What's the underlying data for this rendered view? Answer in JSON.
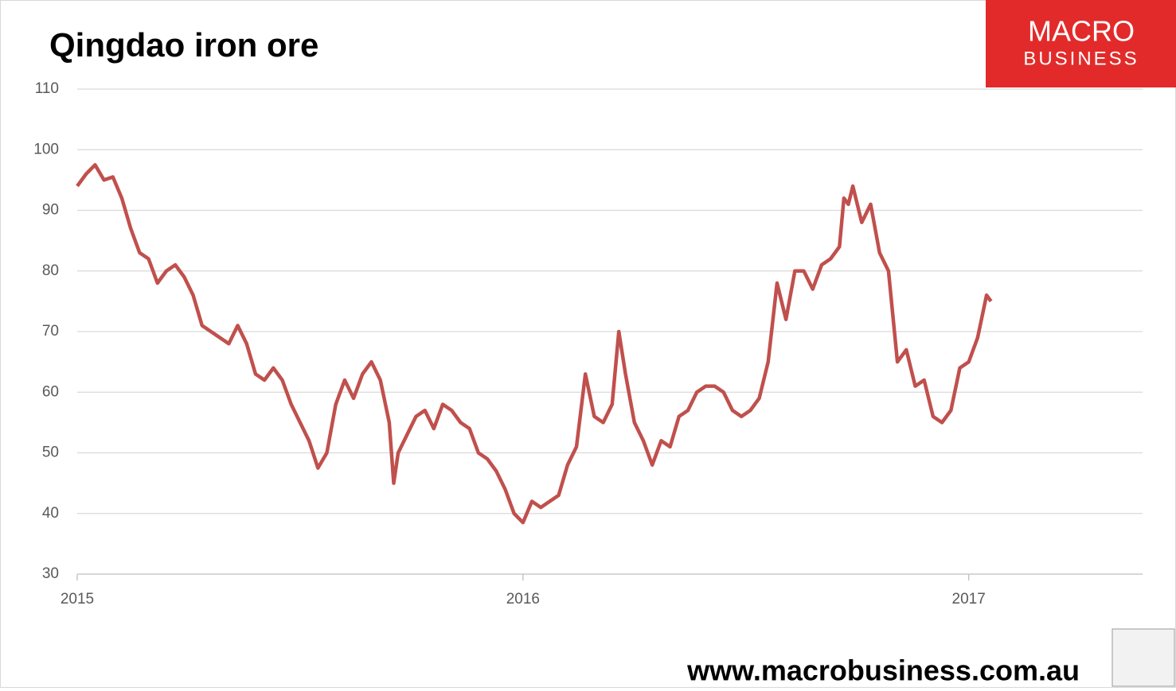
{
  "chart_data": {
    "type": "line",
    "title": "Qingdao iron ore",
    "logo": [
      "MACRO",
      "BUSINESS"
    ],
    "source": "www.macrobusiness.com.au",
    "x": [
      2015.0,
      2015.02,
      2015.04,
      2015.06,
      2015.08,
      2015.1,
      2015.12,
      2015.14,
      2015.16,
      2015.18,
      2015.2,
      2015.22,
      2015.24,
      2015.26,
      2015.28,
      2015.3,
      2015.32,
      2015.34,
      2015.36,
      2015.38,
      2015.4,
      2015.42,
      2015.44,
      2015.46,
      2015.48,
      2015.5,
      2015.52,
      2015.54,
      2015.56,
      2015.58,
      2015.6,
      2015.62,
      2015.64,
      2015.66,
      2015.68,
      2015.7,
      2015.71,
      2015.72,
      2015.74,
      2015.76,
      2015.78,
      2015.8,
      2015.82,
      2015.84,
      2015.86,
      2015.88,
      2015.9,
      2015.92,
      2015.94,
      2015.96,
      2015.98,
      2016.0,
      2016.02,
      2016.04,
      2016.06,
      2016.08,
      2016.1,
      2016.12,
      2016.14,
      2016.16,
      2016.18,
      2016.2,
      2016.215,
      2016.23,
      2016.25,
      2016.27,
      2016.29,
      2016.31,
      2016.33,
      2016.35,
      2016.37,
      2016.39,
      2016.41,
      2016.43,
      2016.45,
      2016.47,
      2016.49,
      2016.51,
      2016.53,
      2016.55,
      2016.57,
      2016.59,
      2016.61,
      2016.63,
      2016.65,
      2016.67,
      2016.69,
      2016.71,
      2016.72,
      2016.73,
      2016.74,
      2016.76,
      2016.78,
      2016.8,
      2016.82,
      2016.84,
      2016.86,
      2016.88,
      2016.9,
      2016.92,
      2016.94,
      2016.96,
      2016.98,
      2017.0,
      2017.02,
      2017.04,
      2017.05
    ],
    "series": [
      {
        "name": "Qingdao iron ore",
        "color": "#c0504d",
        "values": [
          94,
          96,
          97.5,
          95,
          95.5,
          92,
          87,
          83,
          82,
          78,
          80,
          81,
          79,
          76,
          71,
          70,
          69,
          68,
          71,
          68,
          63,
          62,
          64,
          62,
          58,
          55,
          52,
          47.5,
          50,
          58,
          62,
          59,
          63,
          65,
          62,
          55,
          45,
          50,
          53,
          56,
          57,
          54,
          58,
          57,
          55,
          54,
          50,
          49,
          47,
          44,
          40,
          38.5,
          42,
          41,
          42,
          43,
          48,
          51,
          63,
          56,
          55,
          58,
          70,
          63,
          55,
          52,
          48,
          52,
          51,
          56,
          57,
          60,
          61,
          61,
          60,
          57,
          56,
          57,
          59,
          65,
          78,
          72,
          80,
          80,
          77,
          81,
          82,
          84,
          92,
          91,
          94,
          88,
          91,
          83,
          80,
          65,
          67,
          61,
          62,
          56,
          55,
          57,
          64,
          65,
          69,
          76,
          75
        ]
      }
    ],
    "xlim": [
      2015,
      2017.39
    ],
    "xticks": [
      2015,
      2016,
      2017
    ],
    "ylim": [
      30,
      110
    ],
    "yticks": [
      30,
      40,
      50,
      60,
      70,
      80,
      90,
      100,
      110
    ],
    "grid": true
  }
}
